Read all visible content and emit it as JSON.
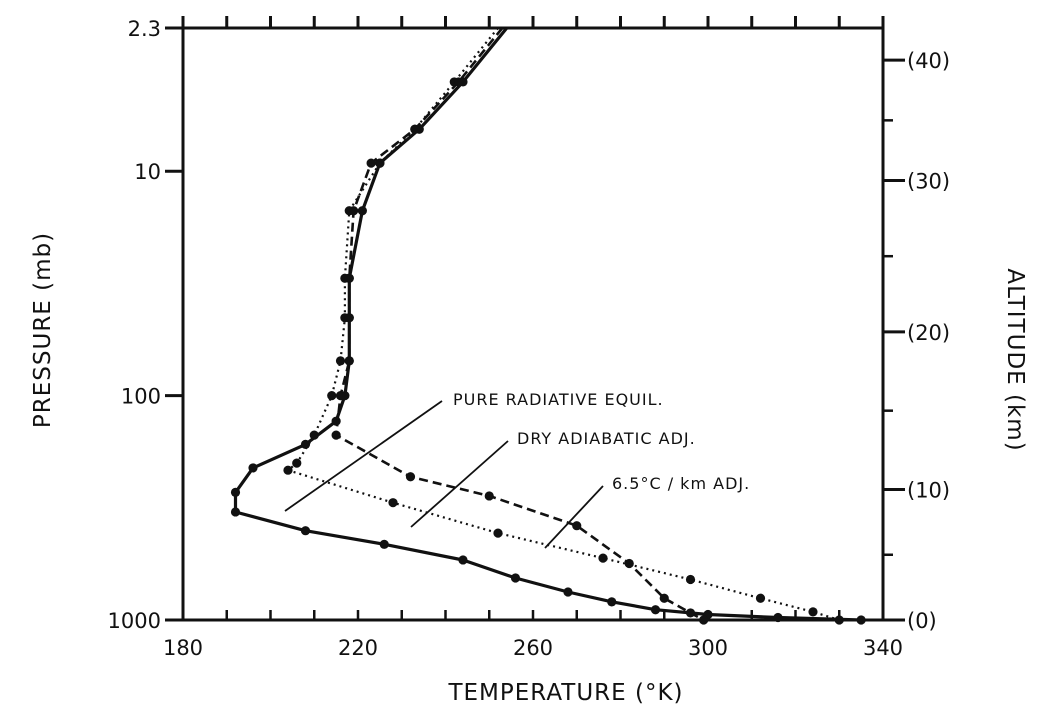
{
  "chart_data": {
    "type": "line",
    "xlabel": "TEMPERATURE (°K)",
    "ylabel": "PRESSURE (mb)",
    "y2label": "ALTITUDE (km)",
    "xlim": [
      180,
      340
    ],
    "ylim": [
      1000,
      2.3
    ],
    "yscale": "log",
    "x_ticks": [
      180,
      220,
      260,
      300,
      340
    ],
    "x_tick_labels": [
      "180",
      "220",
      "260",
      "300",
      "340"
    ],
    "y_ticks": [
      1000,
      100,
      10,
      2.3
    ],
    "y_tick_labels": [
      "1000",
      "100",
      "10",
      "2.3"
    ],
    "y2_ticks": [
      {
        "label": "(0)",
        "pressure": 1000
      },
      {
        "label": "(10)",
        "pressure": 262
      },
      {
        "label": "(20)",
        "pressure": 52
      },
      {
        "label": "(30)",
        "pressure": 11
      },
      {
        "label": "(40)",
        "pressure": 3.2
      }
    ],
    "grid": false,
    "legend": "none",
    "annotations": [
      {
        "text": "PURE RADIATIVE EQUIL.",
        "series": "radiative"
      },
      {
        "text": "DRY ADIABATIC ADJ.",
        "series": "dry"
      },
      {
        "text": "6.5°C / km ADJ.",
        "series": "lapse"
      }
    ],
    "series": [
      {
        "id": "radiative",
        "style": "solid",
        "points": [
          [
            254,
            2.3
          ],
          [
            244,
            4
          ],
          [
            234,
            6.5
          ],
          [
            225,
            9.2
          ],
          [
            221,
            15
          ],
          [
            218,
            30
          ],
          [
            218,
            45
          ],
          [
            218,
            70
          ],
          [
            217,
            100
          ],
          [
            215,
            130
          ],
          [
            208,
            165
          ],
          [
            196,
            210
          ],
          [
            192,
            270
          ],
          [
            192,
            330
          ],
          [
            208,
            400
          ],
          [
            226,
            460
          ],
          [
            244,
            540
          ],
          [
            256,
            650
          ],
          [
            268,
            750
          ],
          [
            278,
            830
          ],
          [
            288,
            900
          ],
          [
            300,
            945
          ],
          [
            316,
            975
          ],
          [
            335,
            1000
          ]
        ]
      },
      {
        "id": "dry",
        "style": "dotted",
        "points": [
          [
            252,
            2.3
          ],
          [
            242,
            4
          ],
          [
            233,
            6.5
          ],
          [
            225,
            9.2
          ],
          [
            218,
            15
          ],
          [
            217,
            30
          ],
          [
            217,
            45
          ],
          [
            216,
            70
          ],
          [
            214,
            100
          ],
          [
            210,
            150
          ],
          [
            206,
            200
          ],
          [
            204,
            215
          ],
          [
            228,
            300
          ],
          [
            252,
            410
          ],
          [
            276,
            530
          ],
          [
            296,
            660
          ],
          [
            312,
            800
          ],
          [
            324,
            920
          ],
          [
            330,
            1000
          ]
        ]
      },
      {
        "id": "lapse",
        "style": "dashed",
        "points": [
          [
            253,
            2.3
          ],
          [
            243,
            4
          ],
          [
            233,
            6.5
          ],
          [
            223,
            9.2
          ],
          [
            219,
            15
          ],
          [
            218,
            30
          ],
          [
            218,
            45
          ],
          [
            218,
            70
          ],
          [
            216,
            100
          ],
          [
            215,
            150
          ],
          [
            232,
            230
          ],
          [
            250,
            280
          ],
          [
            270,
            380
          ],
          [
            282,
            560
          ],
          [
            290,
            800
          ],
          [
            296,
            930
          ],
          [
            299,
            1000
          ]
        ]
      }
    ]
  }
}
